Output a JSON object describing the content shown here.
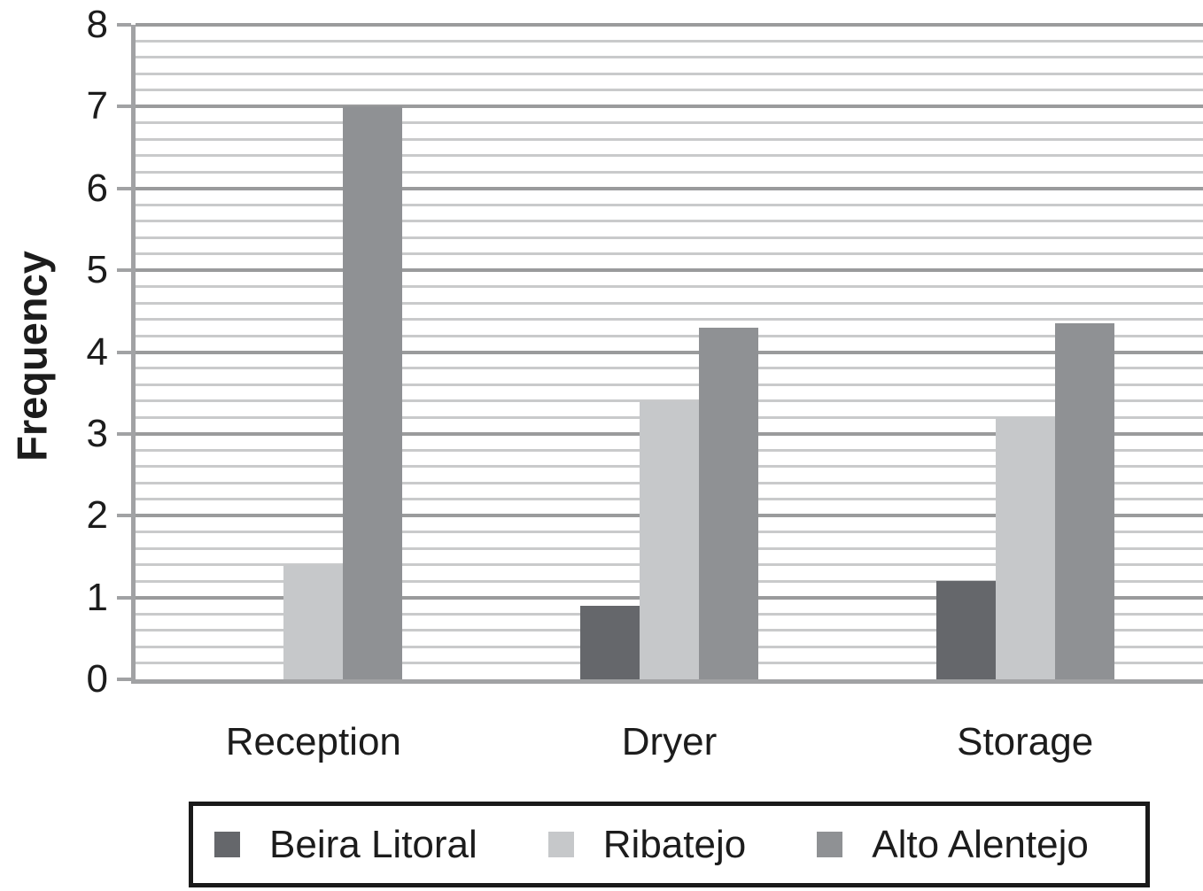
{
  "chart_data": {
    "type": "bar",
    "ylabel": "Frequency",
    "categories": [
      "Reception",
      "Dryer",
      "Storage"
    ],
    "series": [
      {
        "name": "Beira Litoral",
        "color": "#65676b",
        "values": [
          0,
          0.9,
          1.2
        ]
      },
      {
        "name": "Ribatejo",
        "color": "#c6c8ca",
        "values": [
          1.4,
          3.4,
          3.2
        ]
      },
      {
        "name": "Alto Alentejo",
        "color": "#8f9194",
        "values": [
          7,
          4.3,
          4.35
        ]
      }
    ],
    "ylim": [
      0,
      8
    ],
    "yticks": [
      0,
      1,
      2,
      3,
      4,
      5,
      6,
      7,
      8
    ],
    "y_minor_step": 0.2,
    "grid": {
      "horizontal_major": true,
      "horizontal_minor": true,
      "vertical": false
    },
    "legend_position": "bottom-boxed",
    "colors": {
      "major_gridline": "#9a9b9c",
      "minor_gridline": "#c9cacb",
      "axis": "#a1a2a4",
      "text": "#1c1c1c",
      "legend_border": "#1a1a1a",
      "background": "#ffffff"
    }
  }
}
